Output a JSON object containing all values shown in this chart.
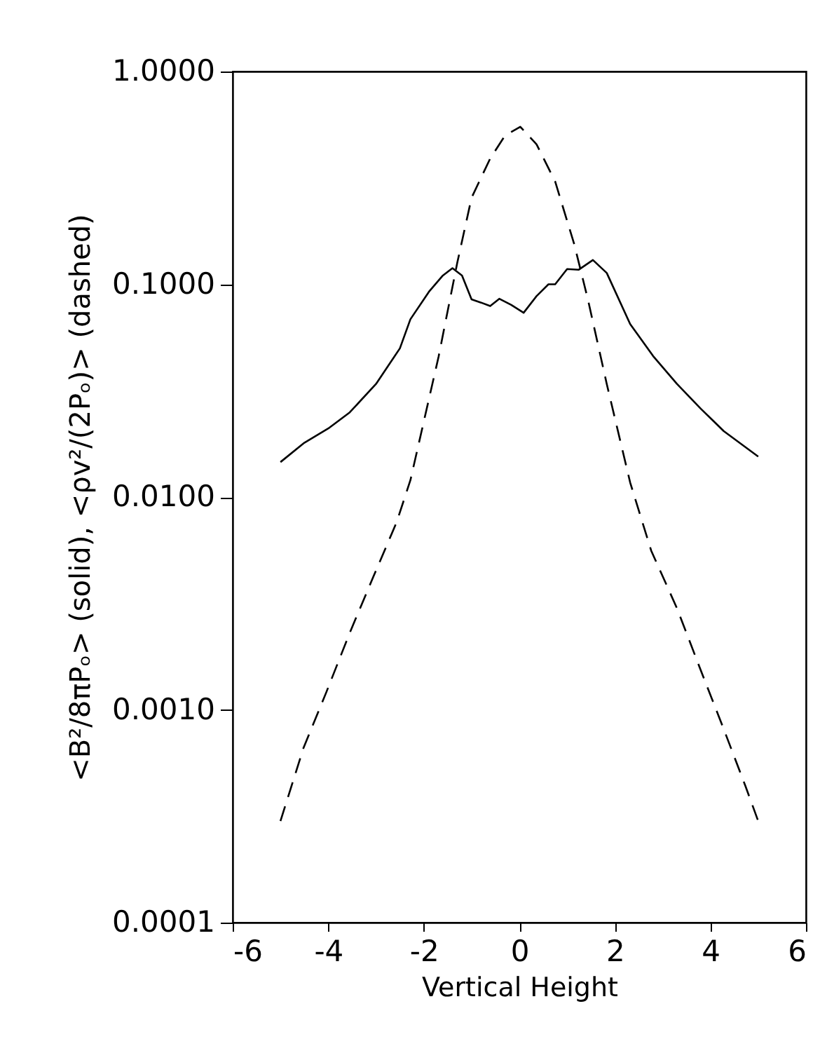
{
  "chart_data": {
    "type": "line",
    "xlabel": "Vertical Height",
    "ylabel": "<B²/8πPₒ> (solid), <ρv²/(2Pₒ)> (dashed)",
    "log": "y",
    "grid": false,
    "marker": "none",
    "xlim": [
      -6,
      6
    ],
    "xticks": [
      -6,
      -4,
      -2,
      0,
      2,
      4,
      6
    ],
    "ylim": [
      0.0001,
      1
    ],
    "yticks": [
      {
        "value": 0.0001,
        "label": "0.0001"
      },
      {
        "value": 0.001,
        "label": "0.0010"
      },
      {
        "value": 0.01,
        "label": "0.0100"
      },
      {
        "value": 0.1,
        "label": "0.1000"
      },
      {
        "value": 1,
        "label": "1.0000"
      }
    ],
    "series": [
      {
        "color": "#000000",
        "line_style": "solid",
        "x": [
          -5,
          -4.5,
          -4,
          -3.55,
          -3,
          -2.5,
          -2.28,
          -1.88,
          -1.6,
          -1.4,
          -1.2,
          -1.0,
          -0.8,
          -0.61,
          -0.42,
          -0.17,
          0.09,
          0.36,
          0.61,
          0.75,
          1.0,
          1.24,
          1.54,
          1.83,
          2.32,
          2.8,
          3.3,
          3.8,
          4.28,
          5
        ],
        "values": [
          0.0146,
          0.018,
          0.021,
          0.025,
          0.034,
          0.05,
          0.0685,
          0.093,
          0.11,
          0.119,
          0.11,
          0.085,
          0.082,
          0.079,
          0.0855,
          0.08,
          0.0735,
          0.088,
          0.1,
          0.1,
          0.118,
          0.117,
          0.13,
          0.113,
          0.065,
          0.046,
          0.034,
          0.026,
          0.0204,
          0.0155
        ]
      },
      {
        "color": "#000000",
        "line_style": "dashed",
        "x": [
          -5,
          -4.52,
          -4.04,
          -3.55,
          -3.06,
          -2.57,
          -2.28,
          -1.69,
          -1.3,
          -1.0,
          -0.61,
          -0.3,
          0.02,
          0.36,
          0.75,
          1.15,
          1.44,
          1.83,
          2.32,
          2.76,
          3.3,
          3.79,
          4.28,
          4.73,
          5
        ],
        "values": [
          0.0003,
          0.00066,
          0.00121,
          0.0023,
          0.0042,
          0.0076,
          0.012,
          0.0457,
          0.126,
          0.255,
          0.39,
          0.5,
          0.55,
          0.455,
          0.304,
          0.154,
          0.084,
          0.034,
          0.0117,
          0.0056,
          0.003,
          0.00155,
          0.00081,
          0.00044,
          0.0003
        ]
      }
    ]
  }
}
